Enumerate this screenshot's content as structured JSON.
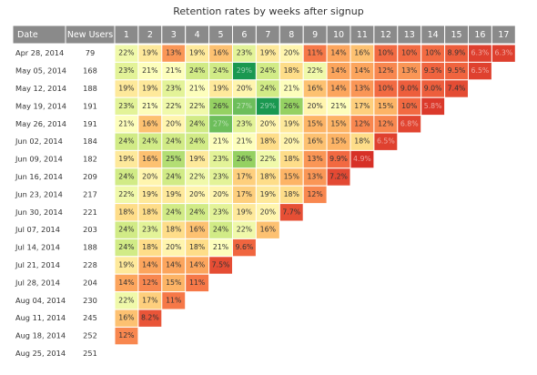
{
  "chart_data": {
    "type": "heatmap",
    "title": "Retention rates by weeks after signup",
    "columns": {
      "date": "Date",
      "new_users": "New Users",
      "weeks": [
        "1",
        "2",
        "3",
        "4",
        "5",
        "6",
        "7",
        "8",
        "9",
        "10",
        "11",
        "12",
        "13",
        "14",
        "15",
        "16",
        "17"
      ]
    },
    "rows": [
      {
        "date": "Apr 28, 2014",
        "new_users": "79",
        "values": [
          "22%",
          "19%",
          "13%",
          "19%",
          "16%",
          "23%",
          "19%",
          "20%",
          "11%",
          "14%",
          "16%",
          "10%",
          "10%",
          "10%",
          "8.9%",
          "6.3%",
          "6.3%"
        ]
      },
      {
        "date": "May 05, 2014",
        "new_users": "168",
        "values": [
          "23%",
          "21%",
          "21%",
          "24%",
          "24%",
          "29%",
          "24%",
          "18%",
          "22%",
          "14%",
          "14%",
          "12%",
          "13%",
          "9.5%",
          "9.5%",
          "6.5%"
        ]
      },
      {
        "date": "May 12, 2014",
        "new_users": "188",
        "values": [
          "19%",
          "19%",
          "23%",
          "21%",
          "19%",
          "20%",
          "24%",
          "21%",
          "16%",
          "14%",
          "13%",
          "10%",
          "9.0%",
          "9.0%",
          "7.4%"
        ]
      },
      {
        "date": "May 19, 2014",
        "new_users": "191",
        "values": [
          "23%",
          "21%",
          "22%",
          "22%",
          "26%",
          "27%",
          "29%",
          "26%",
          "20%",
          "21%",
          "17%",
          "15%",
          "10%",
          "5.8%"
        ]
      },
      {
        "date": "May 26, 2014",
        "new_users": "191",
        "values": [
          "21%",
          "16%",
          "20%",
          "24%",
          "27%",
          "23%",
          "20%",
          "19%",
          "15%",
          "15%",
          "12%",
          "12%",
          "6.8%"
        ]
      },
      {
        "date": "Jun 02, 2014",
        "new_users": "184",
        "values": [
          "24%",
          "24%",
          "24%",
          "24%",
          "21%",
          "21%",
          "18%",
          "20%",
          "16%",
          "15%",
          "18%",
          "6.5%"
        ]
      },
      {
        "date": "Jun 09, 2014",
        "new_users": "182",
        "values": [
          "19%",
          "16%",
          "25%",
          "19%",
          "23%",
          "26%",
          "22%",
          "18%",
          "13%",
          "9.9%",
          "4.9%"
        ]
      },
      {
        "date": "Jun 16, 2014",
        "new_users": "209",
        "values": [
          "24%",
          "20%",
          "24%",
          "22%",
          "23%",
          "17%",
          "18%",
          "15%",
          "13%",
          "7.2%"
        ]
      },
      {
        "date": "Jun 23, 2014",
        "new_users": "217",
        "values": [
          "22%",
          "19%",
          "19%",
          "20%",
          "20%",
          "17%",
          "19%",
          "18%",
          "12%"
        ]
      },
      {
        "date": "Jun 30, 2014",
        "new_users": "221",
        "values": [
          "18%",
          "18%",
          "24%",
          "24%",
          "23%",
          "19%",
          "20%",
          "7.7%"
        ]
      },
      {
        "date": "Jul 07, 2014",
        "new_users": "203",
        "values": [
          "24%",
          "23%",
          "18%",
          "16%",
          "24%",
          "22%",
          "16%"
        ]
      },
      {
        "date": "Jul 14, 2014",
        "new_users": "188",
        "values": [
          "24%",
          "18%",
          "20%",
          "18%",
          "21%",
          "9.6%"
        ]
      },
      {
        "date": "Jul 21, 2014",
        "new_users": "228",
        "values": [
          "19%",
          "14%",
          "14%",
          "14%",
          "7.5%"
        ]
      },
      {
        "date": "Jul 28, 2014",
        "new_users": "204",
        "values": [
          "14%",
          "12%",
          "15%",
          "11%"
        ]
      },
      {
        "date": "Aug 04, 2014",
        "new_users": "230",
        "values": [
          "22%",
          "17%",
          "11%"
        ]
      },
      {
        "date": "Aug 11, 2014",
        "new_users": "245",
        "values": [
          "16%",
          "8.2%"
        ]
      },
      {
        "date": "Aug 18, 2014",
        "new_users": "252",
        "values": [
          "12%"
        ]
      },
      {
        "date": "Aug 25, 2014",
        "new_users": "251",
        "values": []
      }
    ],
    "color_scale": {
      "low": "#d73027",
      "mid": "#ffffbf",
      "high": "#1a9850",
      "header": "#8a8a8a"
    }
  }
}
